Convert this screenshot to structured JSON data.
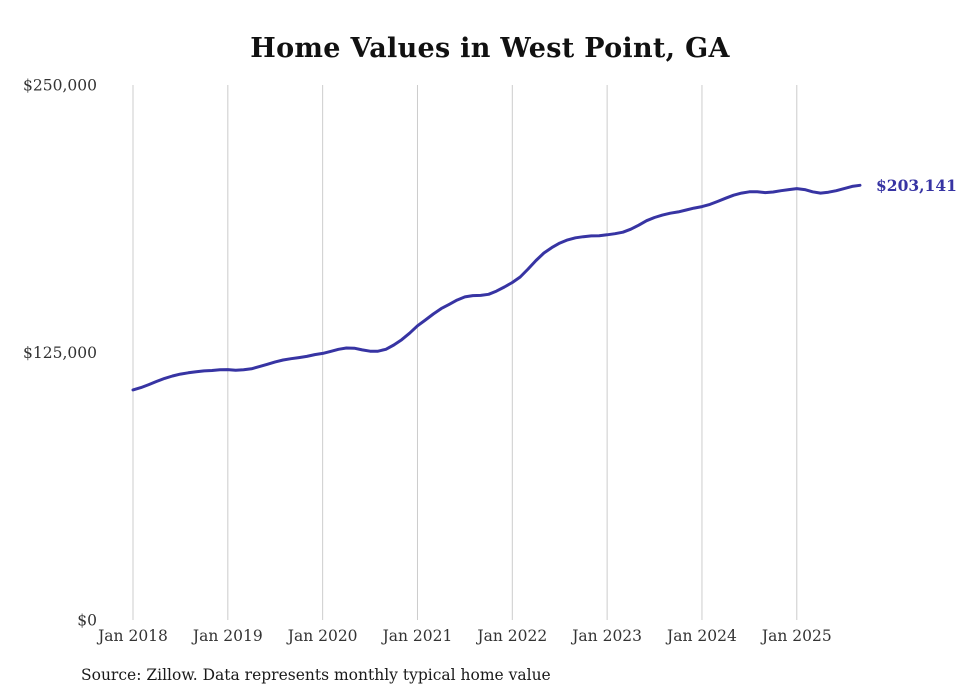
{
  "page": {
    "background": "#ffffff"
  },
  "chart_data": {
    "type": "line",
    "title": "Home Values in West Point, GA",
    "source_note": "Source: Zillow. Data represents monthly typical home value",
    "end_label": "$203,141",
    "ylim": [
      0,
      250000
    ],
    "grid": "vertical-only",
    "legend": "none",
    "y_ticks": [
      {
        "value": 0,
        "label": "$0"
      },
      {
        "value": 125000,
        "label": "$125,000"
      },
      {
        "value": 250000,
        "label": "$250,000"
      }
    ],
    "x_ticks": [
      {
        "index": 0,
        "label": "Jan 2018"
      },
      {
        "index": 12,
        "label": "Jan 2019"
      },
      {
        "index": 24,
        "label": "Jan 2020"
      },
      {
        "index": 36,
        "label": "Jan 2021"
      },
      {
        "index": 48,
        "label": "Jan 2022"
      },
      {
        "index": 60,
        "label": "Jan 2023"
      },
      {
        "index": 72,
        "label": "Jan 2024"
      },
      {
        "index": 84,
        "label": "Jan 2025"
      }
    ],
    "months": [
      "2018-01",
      "2018-02",
      "2018-03",
      "2018-04",
      "2018-05",
      "2018-06",
      "2018-07",
      "2018-08",
      "2018-09",
      "2018-10",
      "2018-11",
      "2018-12",
      "2019-01",
      "2019-02",
      "2019-03",
      "2019-04",
      "2019-05",
      "2019-06",
      "2019-07",
      "2019-08",
      "2019-09",
      "2019-10",
      "2019-11",
      "2019-12",
      "2020-01",
      "2020-02",
      "2020-03",
      "2020-04",
      "2020-05",
      "2020-06",
      "2020-07",
      "2020-08",
      "2020-09",
      "2020-10",
      "2020-11",
      "2020-12",
      "2021-01",
      "2021-02",
      "2021-03",
      "2021-04",
      "2021-05",
      "2021-06",
      "2021-07",
      "2021-08",
      "2021-09",
      "2021-10",
      "2021-11",
      "2021-12",
      "2022-01",
      "2022-02",
      "2022-03",
      "2022-04",
      "2022-05",
      "2022-06",
      "2022-07",
      "2022-08",
      "2022-09",
      "2022-10",
      "2022-11",
      "2022-12",
      "2023-01",
      "2023-02",
      "2023-03",
      "2023-04",
      "2023-05",
      "2023-06",
      "2023-07",
      "2023-08",
      "2023-09",
      "2023-10",
      "2023-11",
      "2023-12",
      "2024-01",
      "2024-02",
      "2024-03",
      "2024-04",
      "2024-05",
      "2024-06",
      "2024-07",
      "2024-08",
      "2024-09",
      "2024-10",
      "2024-11",
      "2024-12",
      "2025-01",
      "2025-02",
      "2025-03",
      "2025-04",
      "2025-05",
      "2025-06",
      "2025-07",
      "2025-08",
      "2025-09"
    ],
    "values": [
      107500,
      108600,
      110000,
      111500,
      112900,
      114000,
      114900,
      115500,
      116000,
      116400,
      116600,
      116900,
      117000,
      116700,
      116900,
      117400,
      118400,
      119500,
      120600,
      121500,
      122100,
      122600,
      123200,
      124000,
      124600,
      125500,
      126500,
      127100,
      127000,
      126200,
      125600,
      125600,
      126500,
      128500,
      131000,
      134000,
      137500,
      140200,
      143000,
      145500,
      147500,
      149500,
      151000,
      151600,
      151700,
      152200,
      153700,
      155600,
      157700,
      160300,
      164000,
      168000,
      171500,
      174000,
      176100,
      177600,
      178600,
      179100,
      179500,
      179600,
      180000,
      180500,
      181200,
      182600,
      184500,
      186600,
      188100,
      189200,
      190100,
      190700,
      191600,
      192500,
      193200,
      194200,
      195600,
      197100,
      198500,
      199500,
      200100,
      200100,
      199700,
      200000,
      200600,
      201100,
      201600,
      201100,
      200100,
      199500,
      199900,
      200600,
      201600,
      202600,
      203141
    ],
    "colors": {
      "line": "#3734a3",
      "grid": "#cccccc",
      "text": "#333333"
    }
  }
}
